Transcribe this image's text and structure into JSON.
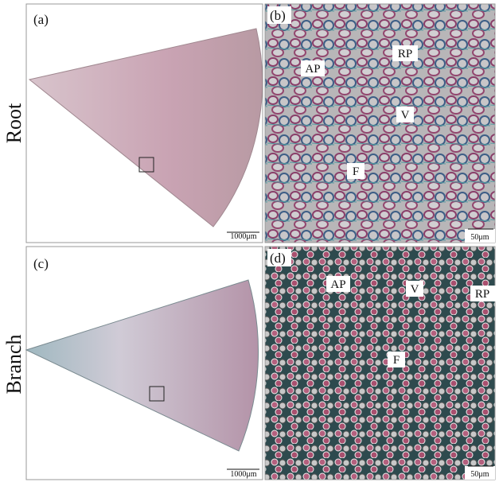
{
  "rows": [
    {
      "label": "Root"
    },
    {
      "label": "Branch"
    }
  ],
  "panels": [
    {
      "label": "(a)",
      "scale_bar": "1000μm"
    },
    {
      "label": "(b)",
      "scale_bar": "50μm",
      "annotations": [
        "AP",
        "RP",
        "V",
        "F"
      ]
    },
    {
      "label": "(c)",
      "scale_bar": "1000μm"
    },
    {
      "label": "(d)",
      "scale_bar": "50μm",
      "annotations": [
        "AP",
        "V",
        "RP",
        "F"
      ]
    }
  ]
}
